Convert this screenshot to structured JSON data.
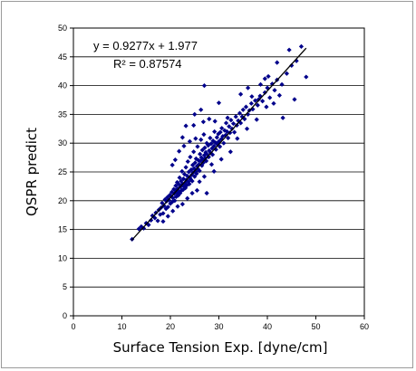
{
  "chart_data": {
    "type": "scatter",
    "xlabel": "Surface Tension Exp. [dyne/cm]",
    "ylabel": "QSPR predict",
    "xlim": [
      0,
      60
    ],
    "ylim": [
      0,
      50
    ],
    "x_ticks": [
      "0",
      "10",
      "20",
      "30",
      "40",
      "50",
      "60"
    ],
    "y_ticks": [
      "0",
      "5",
      "10",
      "15",
      "20",
      "25",
      "30",
      "35",
      "40",
      "45",
      "50"
    ],
    "grid": "horizontal",
    "legend": "none",
    "annotations": {
      "equation": "y = 0.9277x + 1.977",
      "r_squared": "R² = 0.87574"
    },
    "trendline": {
      "slope": 0.9277,
      "intercept": 1.977,
      "x_range": [
        12,
        48
      ]
    },
    "marker_color": "#00008B",
    "points": [
      [
        12.1,
        13.3
      ],
      [
        13.5,
        15.1
      ],
      [
        14.0,
        15.5
      ],
      [
        14.5,
        15.2
      ],
      [
        15.0,
        16.1
      ],
      [
        15.5,
        15.8
      ],
      [
        16.0,
        16.6
      ],
      [
        16.3,
        17.4
      ],
      [
        16.8,
        17.0
      ],
      [
        17.0,
        17.9
      ],
      [
        17.4,
        16.5
      ],
      [
        17.6,
        18.4
      ],
      [
        17.9,
        17.6
      ],
      [
        18.1,
        18.8
      ],
      [
        18.3,
        19.6
      ],
      [
        18.5,
        17.8
      ],
      [
        18.7,
        19.1
      ],
      [
        18.9,
        20.2
      ],
      [
        19.1,
        18.6
      ],
      [
        19.2,
        19.9
      ],
      [
        19.4,
        20.6
      ],
      [
        19.5,
        18.9
      ],
      [
        19.7,
        20.1
      ],
      [
        19.9,
        21.0
      ],
      [
        20.0,
        19.5
      ],
      [
        20.1,
        20.8
      ],
      [
        20.3,
        21.5
      ],
      [
        20.4,
        19.8
      ],
      [
        20.5,
        20.5
      ],
      [
        20.7,
        22.0
      ],
      [
        20.8,
        21.2
      ],
      [
        20.9,
        20.0
      ],
      [
        21.0,
        21.8
      ],
      [
        21.1,
        22.6
      ],
      [
        21.2,
        20.7
      ],
      [
        21.3,
        21.4
      ],
      [
        21.4,
        23.2
      ],
      [
        21.5,
        22.1
      ],
      [
        21.6,
        20.9
      ],
      [
        21.7,
        21.7
      ],
      [
        21.8,
        22.8
      ],
      [
        21.9,
        24.0
      ],
      [
        22.0,
        21.3
      ],
      [
        22.1,
        22.4
      ],
      [
        22.2,
        23.4
      ],
      [
        22.3,
        21.8
      ],
      [
        22.4,
        25.1
      ],
      [
        22.5,
        22.9
      ],
      [
        22.6,
        21.9
      ],
      [
        22.7,
        23.8
      ],
      [
        22.8,
        22.5
      ],
      [
        22.9,
        24.6
      ],
      [
        23.0,
        23.1
      ],
      [
        23.1,
        22.2
      ],
      [
        23.2,
        25.8
      ],
      [
        23.3,
        23.6
      ],
      [
        23.4,
        22.7
      ],
      [
        23.5,
        24.3
      ],
      [
        23.6,
        26.8
      ],
      [
        23.7,
        23.3
      ],
      [
        23.8,
        25.0
      ],
      [
        23.9,
        22.9
      ],
      [
        24.0,
        24.0
      ],
      [
        24.1,
        27.6
      ],
      [
        24.2,
        23.7
      ],
      [
        24.3,
        25.4
      ],
      [
        24.4,
        24.5
      ],
      [
        24.5,
        23.4
      ],
      [
        24.6,
        26.2
      ],
      [
        24.7,
        24.9
      ],
      [
        24.8,
        28.5
      ],
      [
        24.9,
        25.6
      ],
      [
        25.0,
        24.2
      ],
      [
        25.1,
        26.6
      ],
      [
        25.2,
        25.1
      ],
      [
        25.3,
        27.3
      ],
      [
        25.4,
        24.7
      ],
      [
        25.5,
        26.0
      ],
      [
        25.6,
        29.4
      ],
      [
        25.7,
        25.5
      ],
      [
        25.8,
        27.0
      ],
      [
        25.9,
        26.3
      ],
      [
        26.0,
        25.2
      ],
      [
        26.1,
        28.1
      ],
      [
        26.2,
        26.9
      ],
      [
        26.3,
        30.6
      ],
      [
        26.4,
        27.5
      ],
      [
        26.5,
        26.1
      ],
      [
        26.6,
        28.8
      ],
      [
        26.7,
        27.2
      ],
      [
        26.8,
        26.6
      ],
      [
        26.9,
        31.5
      ],
      [
        27.0,
        27.9
      ],
      [
        27.1,
        29.2
      ],
      [
        27.2,
        27.4
      ],
      [
        27.3,
        28.4
      ],
      [
        27.4,
        26.9
      ],
      [
        27.5,
        30.0
      ],
      [
        27.6,
        28.0
      ],
      [
        27.8,
        29.6
      ],
      [
        27.9,
        27.6
      ],
      [
        28.0,
        28.7
      ],
      [
        28.2,
        30.9
      ],
      [
        28.3,
        28.3
      ],
      [
        28.4,
        29.9
      ],
      [
        28.6,
        29.1
      ],
      [
        28.7,
        28.0
      ],
      [
        28.8,
        30.4
      ],
      [
        29.0,
        29.5
      ],
      [
        29.1,
        32.0
      ],
      [
        29.3,
        30.1
      ],
      [
        29.4,
        28.9
      ],
      [
        29.6,
        31.0
      ],
      [
        29.7,
        29.8
      ],
      [
        29.9,
        31.6
      ],
      [
        30.0,
        30.3
      ],
      [
        30.2,
        29.4
      ],
      [
        30.3,
        31.9
      ],
      [
        30.5,
        30.7
      ],
      [
        30.6,
        32.6
      ],
      [
        30.8,
        31.2
      ],
      [
        31.0,
        30.0
      ],
      [
        31.2,
        32.2
      ],
      [
        31.4,
        31.4
      ],
      [
        31.5,
        33.5
      ],
      [
        31.7,
        32.0
      ],
      [
        31.9,
        30.9
      ],
      [
        32.1,
        32.9
      ],
      [
        32.3,
        31.8
      ],
      [
        32.5,
        34.0
      ],
      [
        32.7,
        32.5
      ],
      [
        33.0,
        33.4
      ],
      [
        33.2,
        31.9
      ],
      [
        33.5,
        34.6
      ],
      [
        33.7,
        33.1
      ],
      [
        34.0,
        33.9
      ],
      [
        34.3,
        35.2
      ],
      [
        34.5,
        33.5
      ],
      [
        34.8,
        34.6
      ],
      [
        35.0,
        35.8
      ],
      [
        35.3,
        34.2
      ],
      [
        35.6,
        36.3
      ],
      [
        36.0,
        35.0
      ],
      [
        36.3,
        35.7
      ],
      [
        36.7,
        36.9
      ],
      [
        37.0,
        35.9
      ],
      [
        37.5,
        37.4
      ],
      [
        38.0,
        36.6
      ],
      [
        38.5,
        38.2
      ],
      [
        39.0,
        37.3
      ],
      [
        39.5,
        38.8
      ],
      [
        40.0,
        39.6
      ],
      [
        40.5,
        37.9
      ],
      [
        41.0,
        40.3
      ],
      [
        41.5,
        39.2
      ],
      [
        42.0,
        41.0
      ],
      [
        43.0,
        40.2
      ],
      [
        44.0,
        42.1
      ],
      [
        45.0,
        43.5
      ],
      [
        47.0,
        46.8
      ],
      [
        48.0,
        41.5
      ],
      [
        45.6,
        37.6
      ],
      [
        43.2,
        34.4
      ],
      [
        40.2,
        41.6
      ],
      [
        38.6,
        40.2
      ],
      [
        36.0,
        39.6
      ],
      [
        34.5,
        38.5
      ],
      [
        30.0,
        37.0
      ],
      [
        29.2,
        33.8
      ],
      [
        27.0,
        40.0
      ],
      [
        26.3,
        35.8
      ],
      [
        25.0,
        35.0
      ],
      [
        24.8,
        33.1
      ],
      [
        23.2,
        33.0
      ],
      [
        22.5,
        31.0
      ],
      [
        21.8,
        28.6
      ],
      [
        21.0,
        27.1
      ],
      [
        20.4,
        26.2
      ],
      [
        25.2,
        30.8
      ],
      [
        22.8,
        29.5
      ],
      [
        24.0,
        30.3
      ],
      [
        26.8,
        33.7
      ],
      [
        28.0,
        34.2
      ],
      [
        31.8,
        34.4
      ],
      [
        32.4,
        28.5
      ],
      [
        30.5,
        27.2
      ],
      [
        28.5,
        26.3
      ],
      [
        27.0,
        24.2
      ],
      [
        26.0,
        23.3
      ],
      [
        25.5,
        21.8
      ],
      [
        24.5,
        21.3
      ],
      [
        23.5,
        20.4
      ],
      [
        22.5,
        19.4
      ],
      [
        21.5,
        19.0
      ],
      [
        20.5,
        18.2
      ],
      [
        19.5,
        17.3
      ],
      [
        18.5,
        16.4
      ],
      [
        27.5,
        21.3
      ],
      [
        29.0,
        25.1
      ],
      [
        33.8,
        30.8
      ],
      [
        35.8,
        32.5
      ],
      [
        37.8,
        34.1
      ],
      [
        39.8,
        36.3
      ],
      [
        42.5,
        38.3
      ],
      [
        44.5,
        46.2
      ],
      [
        42.0,
        44.0
      ],
      [
        39.5,
        41.2
      ],
      [
        38.2,
        37.6
      ],
      [
        46.0,
        44.3
      ],
      [
        36.8,
        38.1
      ],
      [
        41.3,
        36.9
      ]
    ]
  }
}
